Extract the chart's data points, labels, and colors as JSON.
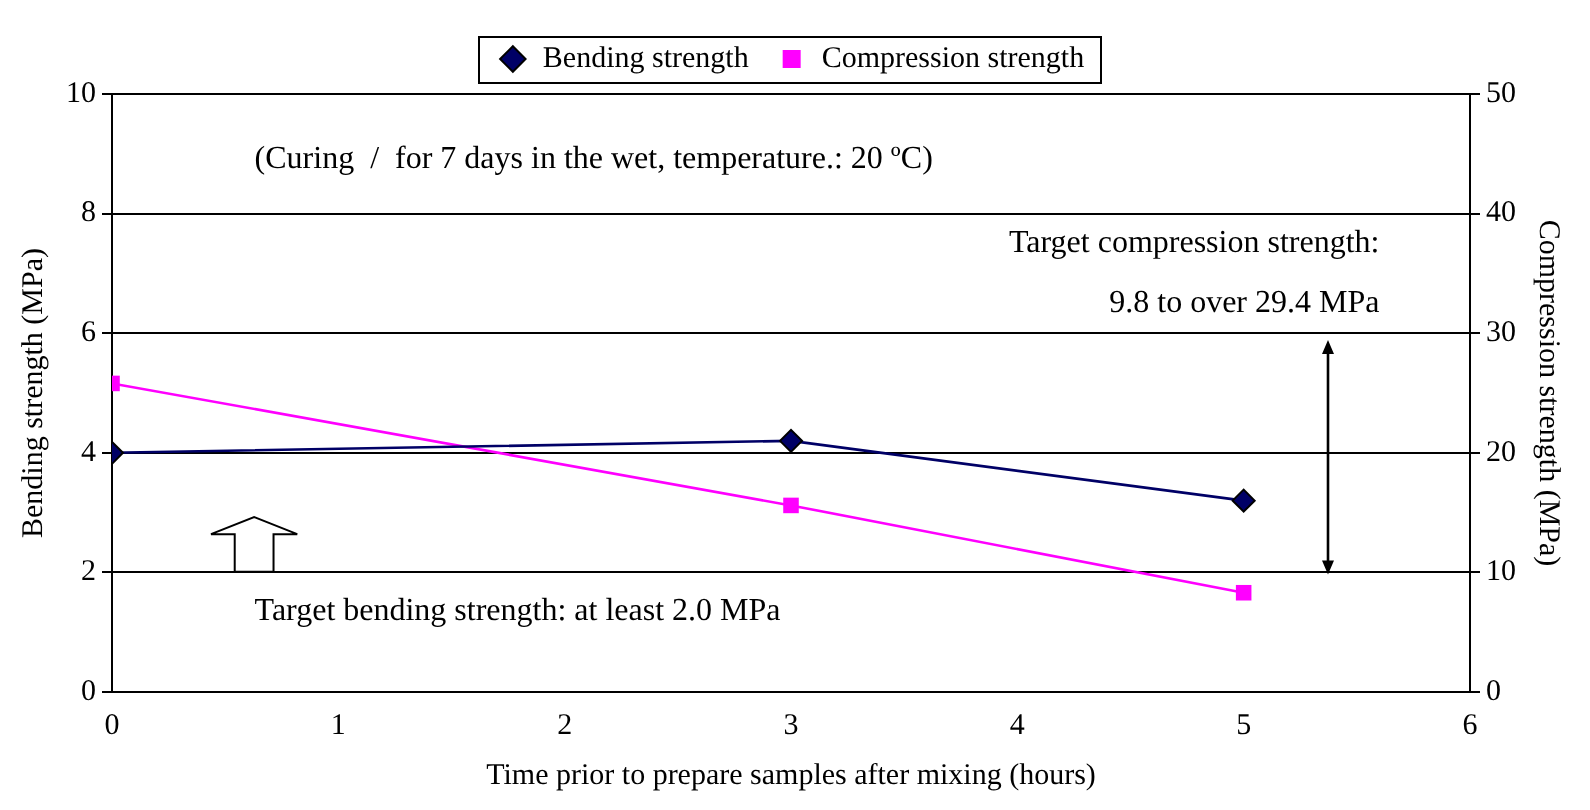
{
  "chart_data": {
    "type": "line",
    "xlabel": "Time prior to prepare samples after mixing (hours)",
    "ylabel": "Bending strength (MPa)",
    "y2label": "Compression strength (MPa)",
    "x": [
      0,
      3,
      5
    ],
    "series": [
      {
        "name": "Bending strength",
        "color": "#000066",
        "values": [
          4.0,
          4.2,
          3.2
        ],
        "marker": "diamond"
      },
      {
        "name": "Compression strength",
        "color": "#ff00ff",
        "values": [
          25.8,
          15.6,
          8.3
        ],
        "marker": "square",
        "axis": "y2"
      }
    ],
    "xlim": [
      0,
      6
    ],
    "xticks": [
      0,
      1,
      2,
      3,
      4,
      5,
      6
    ],
    "ylim": [
      0,
      10
    ],
    "yticks": [
      0,
      2,
      4,
      6,
      8,
      10
    ],
    "y2lim": [
      0,
      50
    ],
    "y2ticks": [
      0,
      10,
      20,
      30,
      40,
      50
    ],
    "grid": "y",
    "legend": "top",
    "line_style": "solid",
    "annotations": [
      "(Curing  /  for 7 days in the wet, temperature.: 20 ºC)",
      "Target compression strength:",
      "9.8 to over 29.4 MPa",
      "Target bending strength: at least 2.0 MPa"
    ]
  }
}
